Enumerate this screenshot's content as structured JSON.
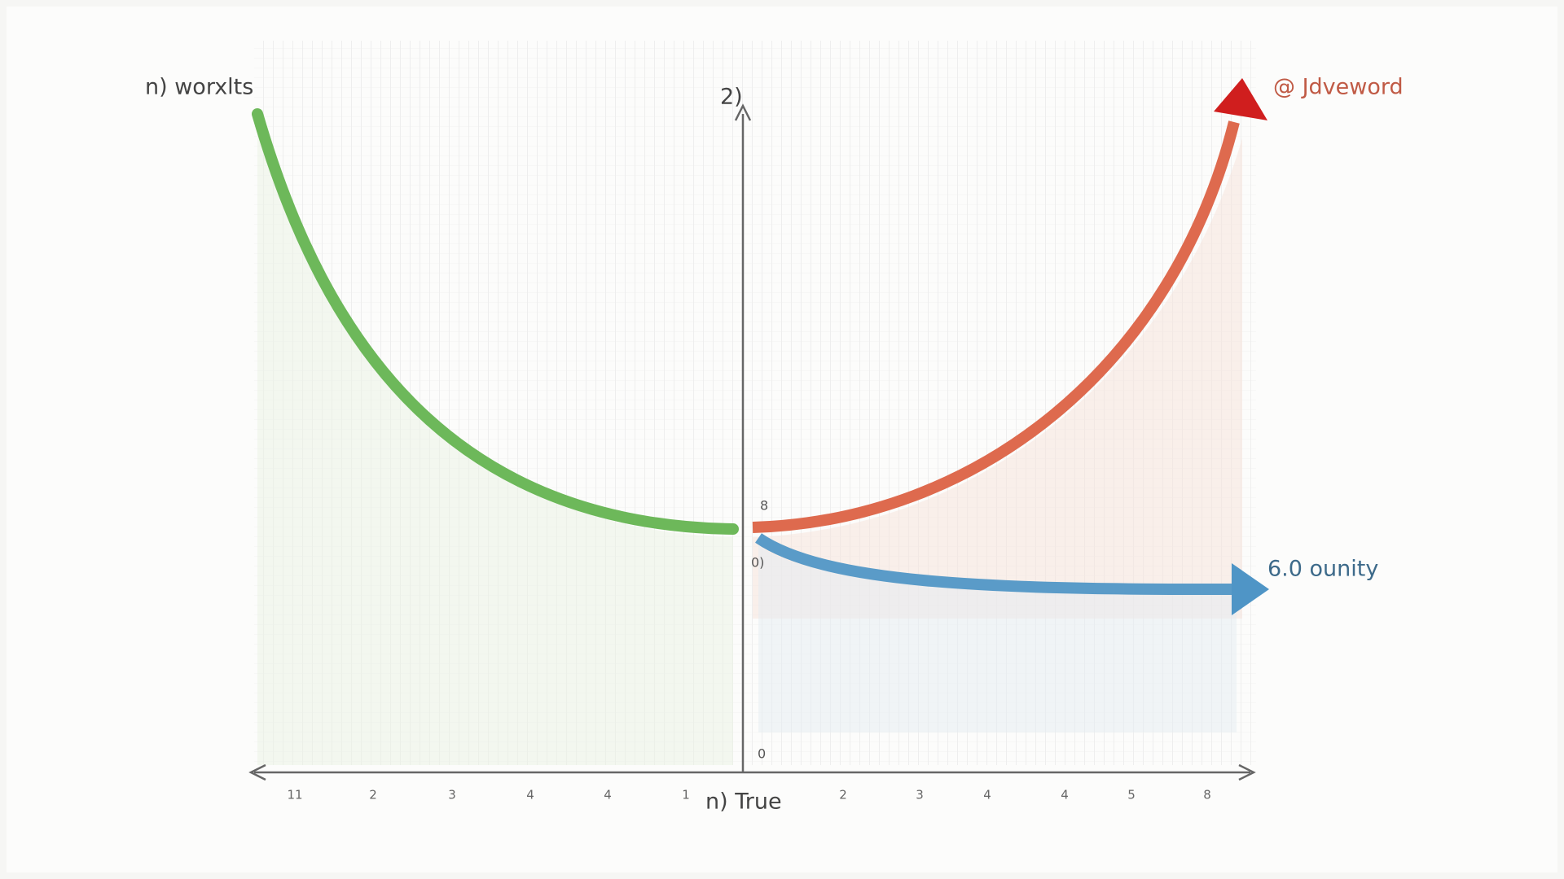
{
  "labels": {
    "top_left": "n) worxlts",
    "top_right": "@ Jdveword",
    "right": "6.0 ounity",
    "axis_top": "2)",
    "axis_bottom": "n) True",
    "origin_upper": "8",
    "origin_lower": "0)",
    "axis_low": "0"
  },
  "ticks": [
    "11",
    "2",
    "3",
    "4",
    "4",
    "1",
    "2",
    "3",
    "4",
    "4",
    "5",
    "8"
  ]
}
